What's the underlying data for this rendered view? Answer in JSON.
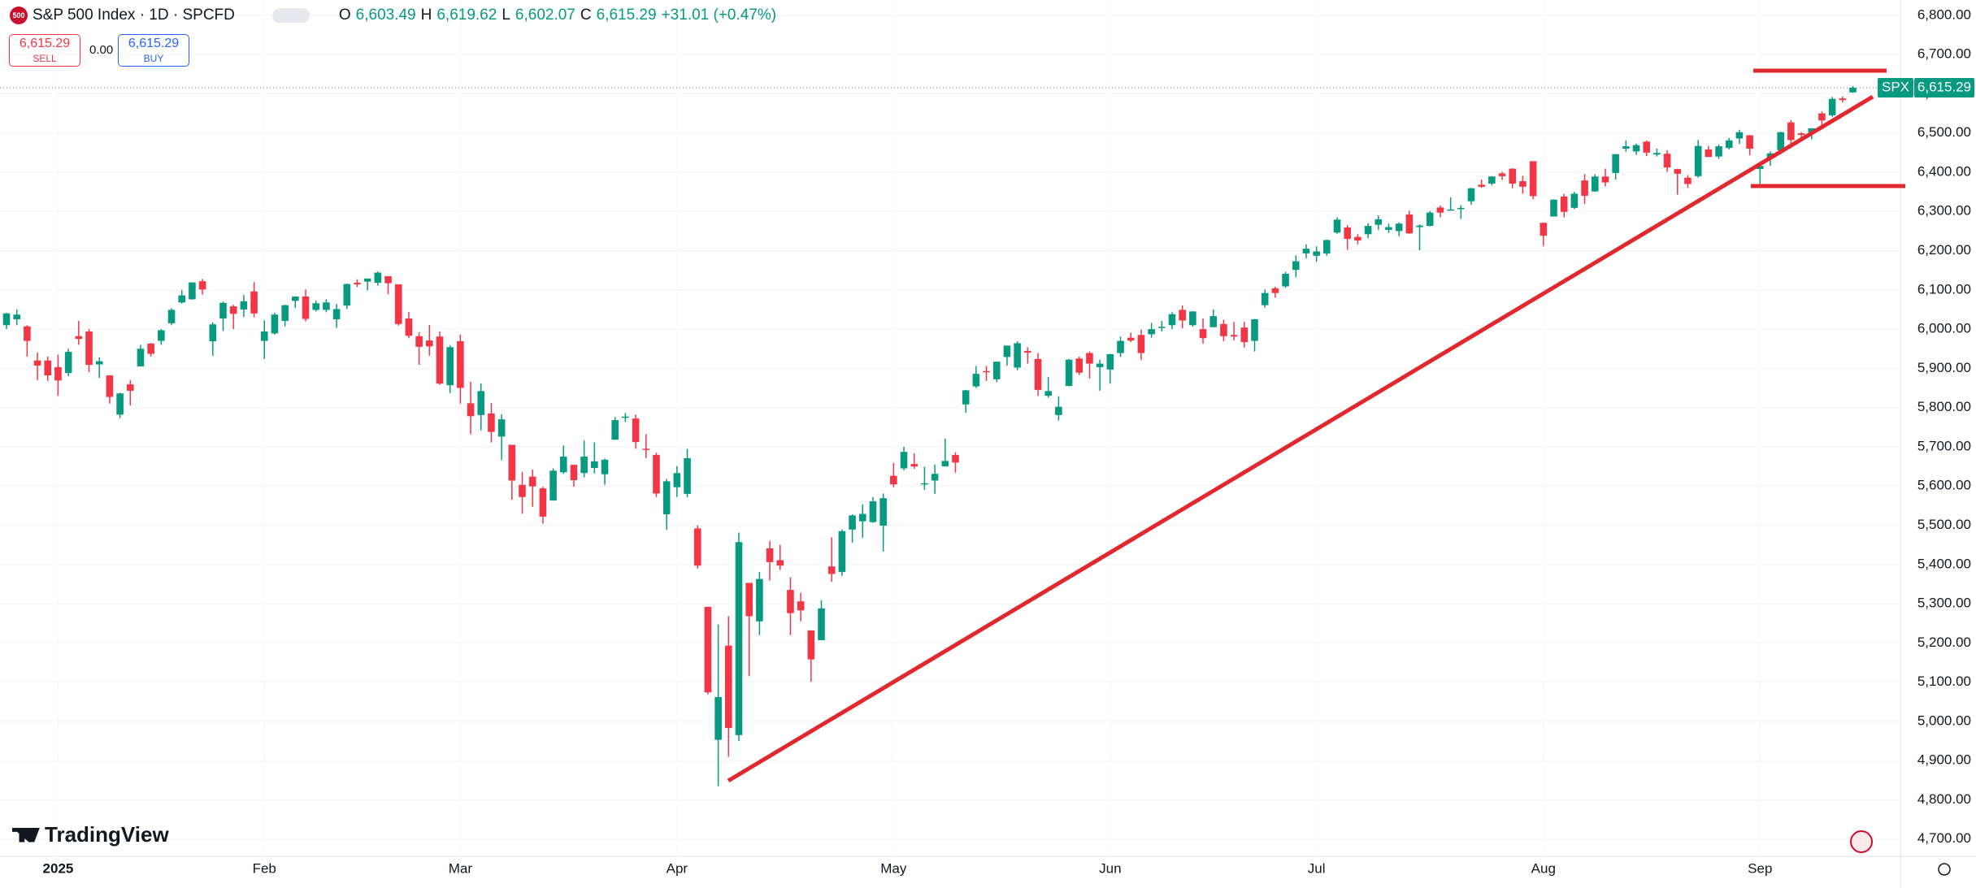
{
  "chart_data": {
    "type": "candlestick",
    "header": {
      "icon": "500",
      "title": "S&P 500 Index · 1D · SPCFD",
      "o_label": "O",
      "o": "6,603.49",
      "h_label": "H",
      "h": "6,619.62",
      "l_label": "L",
      "l": "6,602.07",
      "c_label": "C",
      "c": "6,615.29",
      "change": "+31.01 (+0.47%)"
    },
    "trade": {
      "sell_price": "6,615.29",
      "sell": "SELL",
      "spread": "0.00",
      "buy_price": "6,615.29",
      "buy": "BUY"
    },
    "price_label": {
      "symbol": "SPX",
      "price": "6,615.29"
    },
    "brand": "TradingView",
    "up_color": "#089981",
    "down_color": "#f23645",
    "grid": true,
    "ylim": [
      4656,
      6839
    ],
    "yticks": [
      {
        "value": 4700,
        "label": "4,700.00"
      },
      {
        "value": 4800,
        "label": "4,800.00"
      },
      {
        "value": 4900,
        "label": "4,900.00"
      },
      {
        "value": 5000,
        "label": "5,000.00"
      },
      {
        "value": 5100,
        "label": "5,100.00"
      },
      {
        "value": 5200,
        "label": "5,200.00"
      },
      {
        "value": 5300,
        "label": "5,300.00"
      },
      {
        "value": 5400,
        "label": "5,400.00"
      },
      {
        "value": 5500,
        "label": "5,500.00"
      },
      {
        "value": 5600,
        "label": "5,600.00"
      },
      {
        "value": 5700,
        "label": "5,700.00"
      },
      {
        "value": 5800,
        "label": "5,800.00"
      },
      {
        "value": 5900,
        "label": "5,900.00"
      },
      {
        "value": 6000,
        "label": "6,000.00"
      },
      {
        "value": 6100,
        "label": "6,100.00"
      },
      {
        "value": 6200,
        "label": "6,200.00"
      },
      {
        "value": 6300,
        "label": "6,300.00"
      },
      {
        "value": 6400,
        "label": "6,400.00"
      },
      {
        "value": 6500,
        "label": "6,500.00"
      },
      {
        "value": 6600,
        "label": "6,600.00"
      },
      {
        "value": 6700,
        "label": "6,700.00"
      },
      {
        "value": 6800,
        "label": "6,800.00"
      }
    ],
    "categories": [
      null,
      null,
      null,
      null,
      null,
      "2025",
      null,
      null,
      null,
      null,
      null,
      null,
      null,
      null,
      null,
      null,
      null,
      null,
      null,
      null,
      null,
      null,
      null,
      null,
      null,
      "Feb",
      null,
      null,
      null,
      null,
      null,
      null,
      null,
      null,
      null,
      null,
      null,
      null,
      null,
      null,
      null,
      null,
      null,
      null,
      "Mar",
      null,
      null,
      null,
      null,
      null,
      null,
      null,
      null,
      null,
      null,
      null,
      null,
      null,
      null,
      null,
      null,
      null,
      null,
      null,
      null,
      "Apr",
      null,
      null,
      null,
      null,
      null,
      null,
      null,
      null,
      null,
      null,
      null,
      null,
      null,
      null,
      null,
      null,
      null,
      null,
      null,
      null,
      "May",
      null,
      null,
      null,
      null,
      null,
      null,
      null,
      null,
      null,
      null,
      null,
      null,
      null,
      null,
      null,
      null,
      null,
      null,
      null,
      null,
      "Jun",
      null,
      null,
      null,
      null,
      null,
      null,
      null,
      null,
      null,
      null,
      null,
      null,
      null,
      null,
      null,
      null,
      null,
      null,
      null,
      "Jul",
      null,
      null,
      null,
      null,
      null,
      null,
      null,
      null,
      null,
      null,
      null,
      null,
      null,
      null,
      null,
      null,
      null,
      null,
      null,
      null,
      null,
      "Aug",
      null,
      null,
      null,
      null,
      null,
      null,
      null,
      null,
      null,
      null,
      null,
      null,
      null,
      null,
      null,
      null,
      null,
      null,
      null,
      null,
      "Sep",
      null,
      null,
      null,
      null,
      null,
      null,
      null,
      null,
      null
    ],
    "ohlc": [
      [
        6010,
        6042,
        6000,
        6040
      ],
      [
        6025,
        6050,
        6010,
        6037
      ],
      [
        6007,
        6010,
        5930,
        5970
      ],
      [
        5920,
        5940,
        5870,
        5907
      ],
      [
        5920,
        5930,
        5868,
        5882
      ],
      [
        5903,
        5935,
        5830,
        5869
      ],
      [
        5888,
        5950,
        5880,
        5942
      ],
      [
        5982,
        6021,
        5960,
        5975
      ],
      [
        5994,
        6000,
        5890,
        5909
      ],
      [
        5910,
        5928,
        5875,
        5918
      ],
      [
        5882,
        5882,
        5810,
        5827
      ],
      [
        5782,
        5838,
        5773,
        5836
      ],
      [
        5859,
        5870,
        5805,
        5843
      ],
      [
        5905,
        5960,
        5905,
        5950
      ],
      [
        5963,
        5965,
        5930,
        5937
      ],
      [
        5970,
        6000,
        5960,
        5997
      ],
      [
        6015,
        6053,
        6010,
        6049
      ],
      [
        6068,
        6100,
        6065,
        6086
      ],
      [
        6076,
        6119,
        6075,
        6119
      ],
      [
        6122,
        6128,
        6088,
        6101
      ],
      [
        5969,
        6017,
        5932,
        6012
      ],
      [
        6027,
        6070,
        5995,
        6067
      ],
      [
        6058,
        6062,
        6000,
        6039
      ],
      [
        6050,
        6087,
        6031,
        6071
      ],
      [
        6096,
        6120,
        6030,
        6040
      ],
      [
        5970,
        6022,
        5924,
        5994
      ],
      [
        5989,
        6042,
        5986,
        6037
      ],
      [
        6021,
        6062,
        6007,
        6061
      ],
      [
        6072,
        6084,
        6054,
        6083
      ],
      [
        6083,
        6101,
        6020,
        6026
      ],
      [
        6049,
        6073,
        6045,
        6066
      ],
      [
        6049,
        6076,
        6043,
        6068
      ],
      [
        6025,
        6064,
        6003,
        6051
      ],
      [
        6060,
        6116,
        6051,
        6115
      ],
      [
        6118,
        6127,
        6107,
        6114
      ],
      [
        6121,
        6129,
        6099,
        6129
      ],
      [
        6118,
        6147,
        6111,
        6144
      ],
      [
        6135,
        6135,
        6089,
        6117
      ],
      [
        6114,
        6114,
        6009,
        6013
      ],
      [
        6027,
        6044,
        5977,
        5983
      ],
      [
        5982,
        5992,
        5909,
        5955
      ],
      [
        5971,
        6010,
        5932,
        5956
      ],
      [
        5981,
        5994,
        5858,
        5861
      ],
      [
        5857,
        5959,
        5837,
        5954
      ],
      [
        5969,
        5986,
        5810,
        5850
      ],
      [
        5811,
        5866,
        5732,
        5778
      ],
      [
        5781,
        5861,
        5742,
        5842
      ],
      [
        5785,
        5812,
        5711,
        5738
      ],
      [
        5726,
        5783,
        5666,
        5770
      ],
      [
        5705,
        5705,
        5565,
        5614
      ],
      [
        5603,
        5636,
        5529,
        5572
      ],
      [
        5624,
        5642,
        5547,
        5599
      ],
      [
        5594,
        5598,
        5504,
        5522
      ],
      [
        5563,
        5645,
        5563,
        5639
      ],
      [
        5635,
        5703,
        5631,
        5675
      ],
      [
        5654,
        5654,
        5598,
        5615
      ],
      [
        5633,
        5716,
        5622,
        5675
      ],
      [
        5646,
        5711,
        5632,
        5663
      ],
      [
        5630,
        5670,
        5603,
        5667
      ],
      [
        5718,
        5776,
        5718,
        5768
      ],
      [
        5775,
        5786,
        5763,
        5777
      ],
      [
        5772,
        5782,
        5695,
        5712
      ],
      [
        5695,
        5732,
        5671,
        5693
      ],
      [
        5679,
        5685,
        5572,
        5581
      ],
      [
        5528,
        5618,
        5488,
        5612
      ],
      [
        5597,
        5651,
        5572,
        5633
      ],
      [
        5580,
        5695,
        5571,
        5671
      ],
      [
        5492,
        5500,
        5390,
        5397
      ],
      [
        5292,
        5292,
        5069,
        5074
      ],
      [
        4953,
        5247,
        4835,
        5062
      ],
      [
        5193,
        5268,
        4910,
        4983
      ],
      [
        4965,
        5481,
        4950,
        5457
      ],
      [
        5353,
        5353,
        5115,
        5268
      ],
      [
        5255,
        5381,
        5220,
        5363
      ],
      [
        5441,
        5460,
        5359,
        5406
      ],
      [
        5411,
        5450,
        5386,
        5397
      ],
      [
        5335,
        5367,
        5220,
        5276
      ],
      [
        5306,
        5328,
        5255,
        5283
      ],
      [
        5232,
        5232,
        5101,
        5158
      ],
      [
        5207,
        5309,
        5207,
        5288
      ],
      [
        5395,
        5469,
        5356,
        5376
      ],
      [
        5381,
        5489,
        5371,
        5485
      ],
      [
        5489,
        5528,
        5456,
        5525
      ],
      [
        5510,
        5553,
        5468,
        5529
      ],
      [
        5508,
        5572,
        5506,
        5561
      ],
      [
        5499,
        5581,
        5433,
        5569
      ],
      [
        5626,
        5659,
        5597,
        5604
      ],
      [
        5645,
        5700,
        5640,
        5687
      ],
      [
        5656,
        5683,
        5644,
        5650
      ],
      [
        5605,
        5649,
        5590,
        5607
      ],
      [
        5614,
        5655,
        5580,
        5631
      ],
      [
        5650,
        5721,
        5650,
        5664
      ],
      [
        5679,
        5686,
        5634,
        5660
      ],
      [
        5808,
        5845,
        5787,
        5844
      ],
      [
        5854,
        5906,
        5850,
        5886
      ],
      [
        5893,
        5906,
        5868,
        5892
      ],
      [
        5872,
        5917,
        5865,
        5917
      ],
      [
        5929,
        5958,
        5907,
        5958
      ],
      [
        5902,
        5969,
        5895,
        5964
      ],
      [
        5944,
        5954,
        5912,
        5940
      ],
      [
        5924,
        5939,
        5830,
        5845
      ],
      [
        5830,
        5878,
        5825,
        5842
      ],
      [
        5781,
        5829,
        5767,
        5802
      ],
      [
        5855,
        5924,
        5854,
        5922
      ],
      [
        5925,
        5930,
        5883,
        5889
      ],
      [
        5939,
        5943,
        5874,
        5912
      ],
      [
        5903,
        5922,
        5843,
        5912
      ],
      [
        5897,
        5937,
        5861,
        5936
      ],
      [
        5939,
        5981,
        5929,
        5970
      ],
      [
        5978,
        5991,
        5967,
        5971
      ],
      [
        5985,
        5999,
        5921,
        5939
      ],
      [
        5987,
        6016,
        5978,
        6000
      ],
      [
        6004,
        6021,
        5994,
        6006
      ],
      [
        6010,
        6043,
        6000,
        6038
      ],
      [
        6049,
        6060,
        6002,
        6022
      ],
      [
        6010,
        6046,
        6006,
        6045
      ],
      [
        6000,
        6027,
        5963,
        5977
      ],
      [
        6005,
        6050,
        6005,
        6033
      ],
      [
        6013,
        6024,
        5969,
        5982
      ],
      [
        5985,
        6018,
        5971,
        5981
      ],
      [
        6004,
        6019,
        5953,
        5967
      ],
      [
        5970,
        6026,
        5943,
        6025
      ],
      [
        6061,
        6101,
        6055,
        6092
      ],
      [
        6104,
        6108,
        6080,
        6092
      ],
      [
        6109,
        6146,
        6105,
        6141
      ],
      [
        6151,
        6188,
        6132,
        6173
      ],
      [
        6193,
        6216,
        6180,
        6205
      ],
      [
        6187,
        6211,
        6172,
        6198
      ],
      [
        6193,
        6228,
        6187,
        6227
      ],
      [
        6246,
        6285,
        6243,
        6279
      ],
      [
        6259,
        6265,
        6202,
        6230
      ],
      [
        6235,
        6242,
        6216,
        6226
      ],
      [
        6242,
        6270,
        6232,
        6263
      ],
      [
        6266,
        6290,
        6253,
        6280
      ],
      [
        6253,
        6269,
        6245,
        6260
      ],
      [
        6250,
        6272,
        6237,
        6269
      ],
      [
        6292,
        6302,
        6243,
        6244
      ],
      [
        6260,
        6267,
        6201,
        6264
      ],
      [
        6263,
        6301,
        6262,
        6297
      ],
      [
        6310,
        6315,
        6285,
        6297
      ],
      [
        6304,
        6336,
        6303,
        6305
      ],
      [
        6307,
        6316,
        6281,
        6309
      ],
      [
        6326,
        6360,
        6317,
        6359
      ],
      [
        6368,
        6381,
        6360,
        6363
      ],
      [
        6371,
        6390,
        6366,
        6389
      ],
      [
        6397,
        6401,
        6380,
        6390
      ],
      [
        6409,
        6410,
        6359,
        6371
      ],
      [
        6377,
        6391,
        6345,
        6363
      ],
      [
        6428,
        6428,
        6331,
        6339
      ],
      [
        6271,
        6271,
        6212,
        6238
      ],
      [
        6287,
        6331,
        6287,
        6330
      ],
      [
        6338,
        6345,
        6285,
        6299
      ],
      [
        6309,
        6350,
        6306,
        6345
      ],
      [
        6379,
        6395,
        6319,
        6340
      ],
      [
        6351,
        6395,
        6350,
        6389
      ],
      [
        6389,
        6409,
        6364,
        6374
      ],
      [
        6398,
        6446,
        6381,
        6446
      ],
      [
        6460,
        6481,
        6452,
        6466
      ],
      [
        6453,
        6473,
        6444,
        6469
      ],
      [
        6478,
        6481,
        6441,
        6450
      ],
      [
        6445,
        6460,
        6440,
        6449
      ],
      [
        6447,
        6456,
        6401,
        6412
      ],
      [
        6408,
        6409,
        6343,
        6396
      ],
      [
        6386,
        6393,
        6360,
        6370
      ],
      [
        6390,
        6482,
        6386,
        6467
      ],
      [
        6458,
        6467,
        6438,
        6439
      ],
      [
        6440,
        6471,
        6434,
        6466
      ],
      [
        6462,
        6487,
        6458,
        6481
      ],
      [
        6486,
        6508,
        6472,
        6502
      ],
      [
        6494,
        6495,
        6443,
        6460
      ],
      [
        6408,
        6417,
        6360,
        6416
      ],
      [
        6437,
        6453,
        6416,
        6448
      ],
      [
        6456,
        6503,
        6445,
        6502
      ],
      [
        6527,
        6533,
        6467,
        6482
      ],
      [
        6499,
        6502,
        6480,
        6495
      ],
      [
        6502,
        6512,
        6484,
        6512
      ],
      [
        6550,
        6555,
        6519,
        6532
      ],
      [
        6545,
        6592,
        6541,
        6587
      ],
      [
        6588,
        6593,
        6578,
        6584
      ],
      [
        6603.49,
        6619.62,
        6602.07,
        6615.29
      ]
    ]
  }
}
